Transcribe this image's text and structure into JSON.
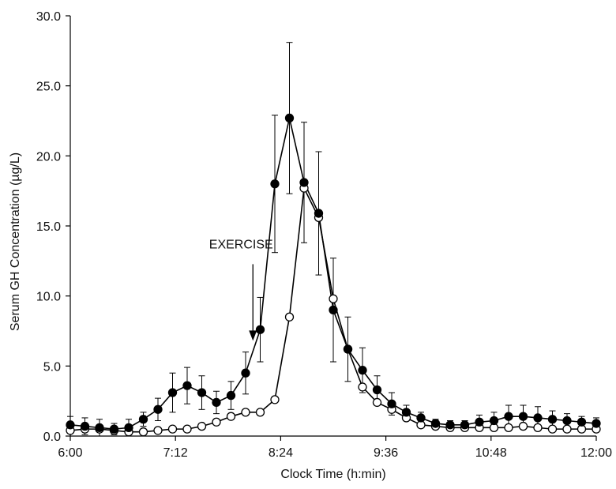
{
  "chart_data": {
    "type": "line",
    "title": "",
    "xlabel": "Clock Time (h:min)",
    "ylabel": "Serum GH Concentration (µg/L)",
    "x_unit": "minutes of clock time",
    "xlim": [
      360,
      720
    ],
    "ylim": [
      0,
      30
    ],
    "x_ticks": [
      {
        "value": 360,
        "label": "6:00"
      },
      {
        "value": 432,
        "label": "7:12"
      },
      {
        "value": 504,
        "label": "8:24"
      },
      {
        "value": 576,
        "label": "9:36"
      },
      {
        "value": 648,
        "label": "10:48"
      },
      {
        "value": 720,
        "label": "12:00"
      }
    ],
    "y_ticks": [
      {
        "value": 0,
        "label": "0.0"
      },
      {
        "value": 5,
        "label": "5.0"
      },
      {
        "value": 10,
        "label": "10.0"
      },
      {
        "value": 15,
        "label": "15.0"
      },
      {
        "value": 20,
        "label": "20.0"
      },
      {
        "value": 25,
        "label": "25.0"
      },
      {
        "value": 30,
        "label": "30.0"
      }
    ],
    "grid": false,
    "legend": "none",
    "series": [
      {
        "marker": "filled-circle",
        "color": "#000000",
        "x": [
          360,
          370,
          380,
          390,
          400,
          410,
          420,
          430,
          440,
          450,
          460,
          470,
          480,
          490,
          500,
          510,
          520,
          530,
          540,
          550,
          560,
          570,
          580,
          590,
          600,
          610,
          620,
          630,
          640,
          650,
          660,
          670,
          680,
          690,
          700,
          710,
          720
        ],
        "y": [
          0.8,
          0.7,
          0.6,
          0.5,
          0.6,
          1.2,
          1.9,
          3.1,
          3.6,
          3.1,
          2.4,
          2.9,
          4.5,
          7.6,
          18.0,
          22.7,
          18.1,
          15.9,
          9.0,
          6.2,
          4.7,
          3.3,
          2.3,
          1.7,
          1.3,
          0.9,
          0.8,
          0.8,
          1.0,
          1.1,
          1.4,
          1.4,
          1.3,
          1.2,
          1.1,
          1.0,
          0.9
        ],
        "err": [
          0.6,
          0.6,
          0.6,
          0.4,
          0.6,
          0.5,
          0.8,
          1.4,
          1.3,
          1.2,
          0.8,
          1.0,
          1.5,
          2.3,
          4.9,
          5.4,
          4.3,
          4.4,
          3.7,
          2.3,
          1.6,
          1.0,
          0.8,
          0.5,
          0.4,
          0.3,
          0.3,
          0.3,
          0.5,
          0.6,
          0.8,
          0.8,
          0.8,
          0.6,
          0.5,
          0.4,
          0.4
        ]
      },
      {
        "marker": "open-circle",
        "color": "#000000",
        "x": [
          360,
          370,
          380,
          390,
          400,
          410,
          420,
          430,
          440,
          450,
          460,
          470,
          480,
          490,
          500,
          510,
          520,
          530,
          540,
          550,
          560,
          570,
          580,
          590,
          600,
          610,
          620,
          630,
          640,
          650,
          660,
          670,
          680,
          690,
          700,
          710,
          720
        ],
        "y": [
          0.4,
          0.5,
          0.5,
          0.4,
          0.3,
          0.3,
          0.4,
          0.5,
          0.5,
          0.7,
          1.0,
          1.4,
          1.7,
          1.7,
          2.6,
          8.5,
          17.7,
          15.6,
          9.8,
          6.2,
          3.5,
          2.4,
          1.9,
          1.3,
          0.8,
          0.7,
          0.6,
          0.6,
          0.6,
          0.6,
          0.6,
          0.7,
          0.6,
          0.5,
          0.5,
          0.5,
          0.5
        ]
      }
    ],
    "annotations": [
      {
        "text": "EXERCISE",
        "points_to_x": 485,
        "points_to_y": 6.8
      }
    ]
  }
}
